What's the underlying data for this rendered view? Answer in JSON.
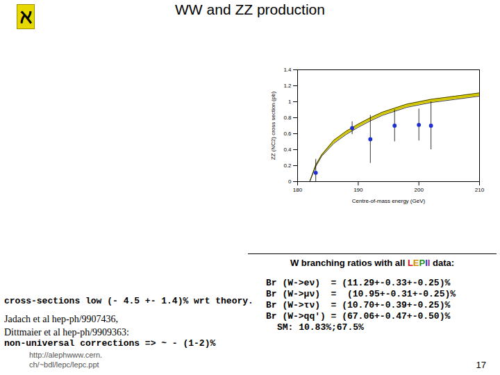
{
  "logo": "ℵ",
  "title": "WW and ZZ production",
  "chart_data": {
    "type": "scatter",
    "x_label": "Centre-of-mass energy (GeV)",
    "y_label": "ZZ (NC2) cross section (pb)",
    "xlim": [
      180,
      210
    ],
    "xticks": [
      180,
      190,
      200,
      210
    ],
    "ylim": [
      0,
      1.4
    ],
    "yticks": [
      0,
      0.2,
      0.4,
      0.6,
      0.8,
      1,
      1.2,
      1.4
    ],
    "series": [
      {
        "type": "area",
        "color": "#f2e600",
        "x": [
          182,
          183,
          184,
          186,
          188,
          190,
          192,
          194,
          196,
          198,
          200,
          202,
          204,
          206,
          208,
          210
        ],
        "values": [
          0,
          0.2,
          0.33,
          0.5,
          0.61,
          0.7,
          0.78,
          0.85,
          0.9,
          0.95,
          0.98,
          1.01,
          1.03,
          1.05,
          1.07,
          1.09
        ],
        "lower": [
          0,
          0.19,
          0.32,
          0.48,
          0.59,
          0.68,
          0.76,
          0.83,
          0.88,
          0.93,
          0.96,
          0.99,
          1.01,
          1.03,
          1.05,
          1.07
        ],
        "upper": [
          0,
          0.21,
          0.34,
          0.52,
          0.63,
          0.72,
          0.8,
          0.87,
          0.92,
          0.97,
          1,
          1.03,
          1.05,
          1.07,
          1.09,
          1.11
        ]
      },
      {
        "type": "scatter",
        "color": "#1f2fd0",
        "marker": "circle",
        "x": [
          183,
          189,
          192,
          196,
          200,
          202
        ],
        "values": [
          0.11,
          0.67,
          0.53,
          0.7,
          0.71,
          0.7
        ],
        "errors": [
          0.17,
          0.08,
          0.3,
          0.2,
          0.2,
          0.3
        ]
      }
    ]
  },
  "left_text": {
    "headline": "cross-sections low (- 4.5 +- 1.4)% wrt theory.",
    "references": [
      "Jadach et al hep-ph/9907436,",
      "Dittmaier et al hep-ph/9909363:"
    ],
    "conclusion": "non-universal corrections => ~ - (1-2)%"
  },
  "right_box": {
    "heading_start": "W branching ratios with all",
    "heading_highlight": "LEPII",
    "heading_end": "data:",
    "lines": [
      "Br (W->eν)  = (11.29+-0.33+-0.25)%",
      "Br (W->μν)  =  (10.95+-0.31+-0.25)%",
      "Br (W->τν)  = (10.70+-0.39+-0.25)%",
      "Br (W->qq') = (67.06+-0.47+-0.50)%",
      "SM: 10.83%;67.5%"
    ]
  },
  "footer": [
    "http://alephwww.cern.",
    "ch/~bdl/lepc/lepc.ppt"
  ],
  "page_number": 17
}
